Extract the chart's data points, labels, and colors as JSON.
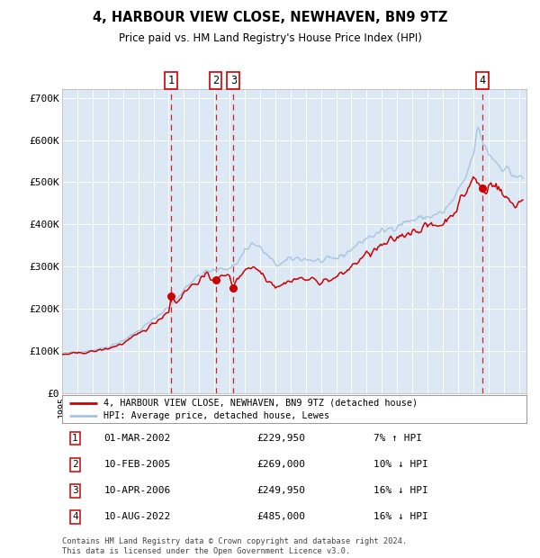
{
  "title": "4, HARBOUR VIEW CLOSE, NEWHAVEN, BN9 9TZ",
  "subtitle": "Price paid vs. HM Land Registry's House Price Index (HPI)",
  "legend_line1": "4, HARBOUR VIEW CLOSE, NEWHAVEN, BN9 9TZ (detached house)",
  "legend_line2": "HPI: Average price, detached house, Lewes",
  "transactions": [
    {
      "num": 1,
      "date": "2002-03-01",
      "price": 229950
    },
    {
      "num": 2,
      "date": "2005-02-10",
      "price": 269000
    },
    {
      "num": 3,
      "date": "2006-04-10",
      "price": 249950
    },
    {
      "num": 4,
      "date": "2022-08-10",
      "price": 485000
    }
  ],
  "table_rows": [
    {
      "num": 1,
      "date": "01-MAR-2002",
      "price": "£229,950",
      "info": "7% ↑ HPI"
    },
    {
      "num": 2,
      "date": "10-FEB-2005",
      "price": "£269,000",
      "info": "10% ↓ HPI"
    },
    {
      "num": 3,
      "date": "10-APR-2006",
      "price": "£249,950",
      "info": "16% ↓ HPI"
    },
    {
      "num": 4,
      "date": "10-AUG-2022",
      "price": "£485,000",
      "info": "16% ↓ HPI"
    }
  ],
  "footer": "Contains HM Land Registry data © Crown copyright and database right 2024.\nThis data is licensed under the Open Government Licence v3.0.",
  "hpi_color": "#a8c4e0",
  "price_color": "#cc0000",
  "dot_color": "#cc0000",
  "vline_color": "#cc0000",
  "box_color": "#cc0000",
  "bg_color": "#dce9f5",
  "grid_color": "#ffffff",
  "ylim": [
    0,
    720000
  ],
  "yticks": [
    0,
    100000,
    200000,
    300000,
    400000,
    500000,
    600000,
    700000
  ],
  "ytick_labels": [
    "£0",
    "£100K",
    "£200K",
    "£300K",
    "£400K",
    "£500K",
    "£600K",
    "£700K"
  ],
  "xstart": 1995.0,
  "xend": 2025.5,
  "hpi_keypoints": [
    [
      1995.0,
      95000
    ],
    [
      1996.0,
      98000
    ],
    [
      1997.0,
      102000
    ],
    [
      1998.0,
      110000
    ],
    [
      1999.0,
      125000
    ],
    [
      2000.0,
      148000
    ],
    [
      2001.0,
      175000
    ],
    [
      2002.0,
      205000
    ],
    [
      2002.5,
      220000
    ],
    [
      2003.0,
      248000
    ],
    [
      2003.5,
      265000
    ],
    [
      2004.0,
      278000
    ],
    [
      2004.5,
      288000
    ],
    [
      2005.0,
      290000
    ],
    [
      2005.5,
      295000
    ],
    [
      2006.0,
      298000
    ],
    [
      2006.5,
      308000
    ],
    [
      2007.0,
      340000
    ],
    [
      2007.5,
      355000
    ],
    [
      2008.0,
      345000
    ],
    [
      2008.5,
      325000
    ],
    [
      2009.0,
      305000
    ],
    [
      2009.5,
      308000
    ],
    [
      2010.0,
      318000
    ],
    [
      2010.5,
      320000
    ],
    [
      2011.0,
      318000
    ],
    [
      2011.5,
      315000
    ],
    [
      2012.0,
      313000
    ],
    [
      2012.5,
      315000
    ],
    [
      2013.0,
      320000
    ],
    [
      2013.5,
      328000
    ],
    [
      2014.0,
      342000
    ],
    [
      2014.5,
      355000
    ],
    [
      2015.0,
      368000
    ],
    [
      2015.5,
      375000
    ],
    [
      2016.0,
      382000
    ],
    [
      2016.5,
      390000
    ],
    [
      2017.0,
      398000
    ],
    [
      2017.5,
      405000
    ],
    [
      2018.0,
      410000
    ],
    [
      2018.5,
      415000
    ],
    [
      2019.0,
      418000
    ],
    [
      2019.5,
      422000
    ],
    [
      2020.0,
      428000
    ],
    [
      2020.5,
      448000
    ],
    [
      2021.0,
      475000
    ],
    [
      2021.5,
      510000
    ],
    [
      2022.0,
      565000
    ],
    [
      2022.3,
      625000
    ],
    [
      2022.5,
      610000
    ],
    [
      2022.7,
      590000
    ],
    [
      2023.0,
      570000
    ],
    [
      2023.3,
      558000
    ],
    [
      2023.5,
      548000
    ],
    [
      2023.8,
      540000
    ],
    [
      2024.0,
      535000
    ],
    [
      2024.3,
      528000
    ],
    [
      2024.5,
      520000
    ],
    [
      2024.8,
      515000
    ],
    [
      2025.0,
      510000
    ],
    [
      2025.3,
      508000
    ]
  ],
  "price_keypoints": [
    [
      1995.0,
      92000
    ],
    [
      1996.0,
      95000
    ],
    [
      1997.0,
      99000
    ],
    [
      1998.0,
      106000
    ],
    [
      1999.0,
      118000
    ],
    [
      2000.0,
      140000
    ],
    [
      2001.0,
      165000
    ],
    [
      2002.0,
      195000
    ],
    [
      2002.17,
      229950
    ],
    [
      2002.5,
      215000
    ],
    [
      2003.0,
      238000
    ],
    [
      2003.5,
      255000
    ],
    [
      2004.0,
      268000
    ],
    [
      2004.5,
      278000
    ],
    [
      2005.08,
      269000
    ],
    [
      2005.5,
      275000
    ],
    [
      2006.0,
      280000
    ],
    [
      2006.25,
      249950
    ],
    [
      2006.5,
      270000
    ],
    [
      2007.0,
      295000
    ],
    [
      2007.5,
      300000
    ],
    [
      2008.0,
      290000
    ],
    [
      2008.5,
      270000
    ],
    [
      2009.0,
      255000
    ],
    [
      2009.5,
      258000
    ],
    [
      2010.0,
      268000
    ],
    [
      2010.5,
      272000
    ],
    [
      2011.0,
      270000
    ],
    [
      2011.5,
      268000
    ],
    [
      2012.0,
      266000
    ],
    [
      2012.5,
      268000
    ],
    [
      2013.0,
      274000
    ],
    [
      2013.5,
      285000
    ],
    [
      2014.0,
      300000
    ],
    [
      2014.5,
      315000
    ],
    [
      2015.0,
      328000
    ],
    [
      2015.5,
      338000
    ],
    [
      2016.0,
      348000
    ],
    [
      2016.5,
      358000
    ],
    [
      2017.0,
      368000
    ],
    [
      2017.5,
      378000
    ],
    [
      2018.0,
      385000
    ],
    [
      2018.5,
      390000
    ],
    [
      2019.0,
      395000
    ],
    [
      2019.5,
      398000
    ],
    [
      2020.0,
      402000
    ],
    [
      2020.5,
      420000
    ],
    [
      2021.0,
      445000
    ],
    [
      2021.5,
      475000
    ],
    [
      2022.0,
      510000
    ],
    [
      2022.58,
      485000
    ],
    [
      2022.7,
      478000
    ],
    [
      2022.9,
      472000
    ],
    [
      2023.0,
      490000
    ],
    [
      2023.2,
      505000
    ],
    [
      2023.4,
      498000
    ],
    [
      2023.6,
      488000
    ],
    [
      2023.8,
      478000
    ],
    [
      2024.0,
      468000
    ],
    [
      2024.2,
      460000
    ],
    [
      2024.4,
      455000
    ],
    [
      2024.6,
      450000
    ],
    [
      2024.8,
      448000
    ],
    [
      2025.0,
      452000
    ],
    [
      2025.3,
      458000
    ]
  ]
}
